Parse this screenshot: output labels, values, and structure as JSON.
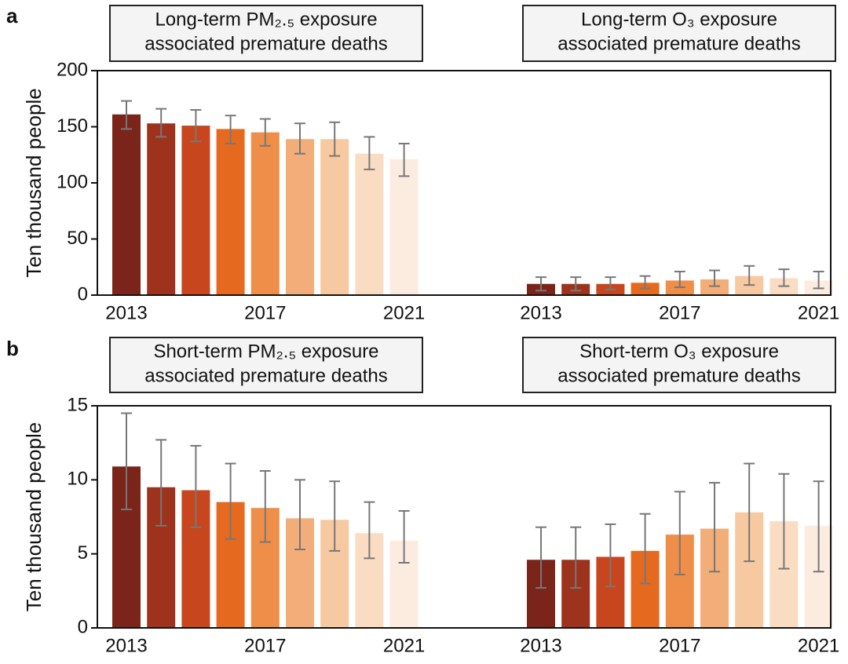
{
  "chart_data": [
    {
      "type": "bar",
      "panel_label": "a",
      "ylabel": "Ten thousand people",
      "categories": [
        "2013",
        null,
        null,
        null,
        "2017",
        null,
        null,
        null,
        "2021"
      ],
      "colors": [
        "#7b2419",
        "#9e331d",
        "#c8461d",
        "#e56a1f",
        "#ef8e48",
        "#f3ad78",
        "#f7c9a0",
        "#fadcc3",
        "#fcece0"
      ],
      "ylim": [
        0,
        200
      ],
      "yticks": [
        0,
        50,
        100,
        150,
        200
      ],
      "groups": [
        {
          "title": [
            "Long-term PM₂.₅ exposure",
            "associated premature deaths"
          ],
          "values": [
            161,
            153,
            151,
            148,
            145,
            139,
            139,
            126,
            121
          ],
          "lower": [
            148,
            141,
            137,
            135,
            133,
            126,
            124,
            112,
            106
          ],
          "upper": [
            173,
            166,
            165,
            160,
            157,
            153,
            154,
            141,
            135
          ]
        },
        {
          "title": [
            "Long-term O₃ exposure",
            "associated premature deaths"
          ],
          "values": [
            10,
            10,
            10,
            11,
            13,
            14,
            17,
            15,
            13
          ],
          "lower": [
            4,
            4,
            5,
            6,
            7,
            8,
            9,
            8,
            6
          ],
          "upper": [
            16,
            16,
            16,
            17,
            21,
            22,
            26,
            23,
            21
          ]
        }
      ]
    },
    {
      "type": "bar",
      "panel_label": "b",
      "ylabel": "Ten thousand people",
      "categories": [
        "2013",
        null,
        null,
        null,
        "2017",
        null,
        null,
        null,
        "2021"
      ],
      "colors": [
        "#7b2419",
        "#9e331d",
        "#c8461d",
        "#e56a1f",
        "#ef8e48",
        "#f3ad78",
        "#f7c9a0",
        "#fadcc3",
        "#fcece0"
      ],
      "ylim": [
        0,
        15
      ],
      "yticks": [
        0,
        5,
        10,
        15
      ],
      "groups": [
        {
          "title": [
            "Short-term PM₂.₅ exposure",
            "associated premature deaths"
          ],
          "values": [
            10.9,
            9.5,
            9.3,
            8.5,
            8.1,
            7.4,
            7.3,
            6.4,
            5.9
          ],
          "lower": [
            8.0,
            6.9,
            6.8,
            6.0,
            5.8,
            5.3,
            5.2,
            4.7,
            4.4
          ],
          "upper": [
            14.5,
            12.7,
            12.3,
            11.1,
            10.6,
            10.0,
            9.9,
            8.5,
            7.9
          ]
        },
        {
          "title": [
            "Short-term O₃ exposure",
            "associated premature deaths"
          ],
          "values": [
            4.6,
            4.6,
            4.8,
            5.2,
            6.3,
            6.7,
            7.8,
            7.2,
            6.9
          ],
          "lower": [
            2.7,
            2.7,
            2.8,
            3.0,
            3.6,
            3.8,
            4.5,
            4.0,
            3.8
          ],
          "upper": [
            6.8,
            6.8,
            7.0,
            7.7,
            9.2,
            9.8,
            11.1,
            10.4,
            9.9
          ]
        }
      ]
    }
  ]
}
